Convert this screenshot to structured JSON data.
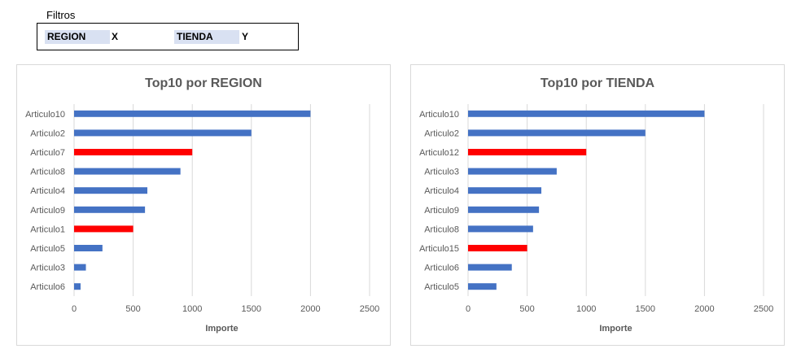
{
  "filters": {
    "title": "Filtros",
    "items": [
      {
        "key": "REGION",
        "value": "X"
      },
      {
        "key": "TIENDA",
        "value": "Y"
      }
    ]
  },
  "colors": {
    "normal": "#4472c4",
    "highlight": "#ff0000",
    "grid": "#d9d9d9",
    "text": "#595959"
  },
  "chart_data": [
    {
      "type": "bar",
      "orientation": "horizontal",
      "title": "Top10 por REGION",
      "xlabel": "Importe",
      "ylabel": "",
      "categories": [
        "Articulo10",
        "Articulo2",
        "Articulo7",
        "Articulo8",
        "Articulo4",
        "Articulo9",
        "Articulo1",
        "Articulo5",
        "Articulo3",
        "Articulo6"
      ],
      "values": [
        2000,
        1500,
        1000,
        900,
        620,
        600,
        500,
        240,
        100,
        55
      ],
      "highlight": [
        "Articulo7",
        "Articulo1"
      ],
      "xlim": [
        0,
        2500
      ],
      "xticks": [
        "0",
        "500",
        "1000",
        "1500",
        "2000",
        "2500"
      ],
      "grid": true
    },
    {
      "type": "bar",
      "orientation": "horizontal",
      "title": "Top10 por TIENDA",
      "xlabel": "Importe",
      "ylabel": "",
      "categories": [
        "Articulo10",
        "Articulo2",
        "Articulo12",
        "Articulo3",
        "Articulo4",
        "Articulo9",
        "Articulo8",
        "Articulo15",
        "Articulo6",
        "Articulo5"
      ],
      "values": [
        2000,
        1500,
        1000,
        750,
        620,
        600,
        550,
        500,
        370,
        240
      ],
      "highlight": [
        "Articulo12",
        "Articulo15"
      ],
      "xlim": [
        0,
        2500
      ],
      "xticks": [
        "0",
        "500",
        "1000",
        "1500",
        "2000",
        "2500"
      ],
      "grid": true
    }
  ]
}
